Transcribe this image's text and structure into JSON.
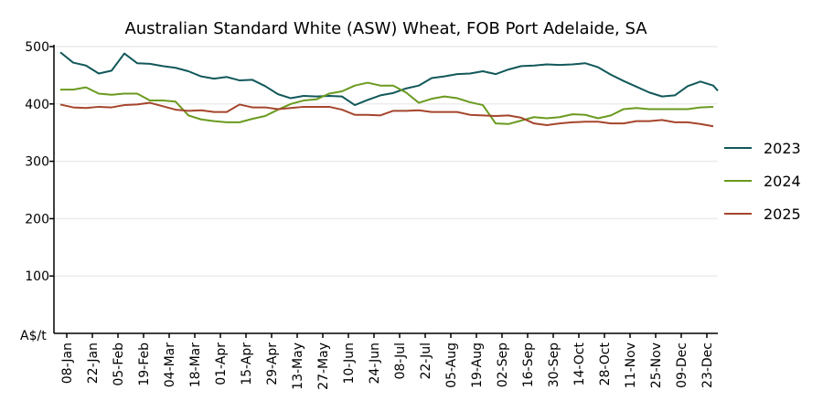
{
  "chart_data": {
    "type": "line",
    "title": "Australian Standard White (ASW) Wheat, FOB Port Adelaide, SA",
    "ylabel": "A$/t",
    "xlabel": "",
    "ylim": [
      0,
      500
    ],
    "yticks": [
      100,
      200,
      300,
      400,
      500
    ],
    "xtick_labels": [
      "08-Jan",
      "22-Jan",
      "05-Feb",
      "19-Feb",
      "04-Mar",
      "18-Mar",
      "01-Apr",
      "15-Apr",
      "29-Apr",
      "13-May",
      "27-May",
      "10-Jun",
      "24-Jun",
      "08-Jul",
      "22-Jul",
      "05-Aug",
      "19-Aug",
      "02-Sep",
      "16-Sep",
      "30-Sep",
      "14-Oct",
      "28-Oct",
      "11-Nov",
      "25-Nov",
      "09-Dec",
      "23-Dec"
    ],
    "x_interval": "weekly",
    "grid": "horizontal",
    "legend_position": "right",
    "series": [
      {
        "name": "2023",
        "color": "#12585a",
        "values": [
          490,
          472,
          467,
          453,
          458,
          488,
          471,
          470,
          466,
          463,
          457,
          448,
          444,
          447,
          441,
          442,
          431,
          417,
          410,
          414,
          413,
          414,
          413,
          398,
          407,
          415,
          419,
          427,
          432,
          445,
          448,
          452,
          453,
          457,
          452,
          460,
          466,
          467,
          469,
          468,
          469,
          471,
          464,
          451,
          440,
          430,
          420,
          413,
          415,
          431,
          439,
          432,
          423
        ]
      },
      {
        "name": "2024",
        "color": "#6a9a1f",
        "values": [
          425,
          425,
          429,
          418,
          416,
          418,
          418,
          406,
          406,
          404,
          380,
          373,
          370,
          368,
          368,
          374,
          379,
          390,
          400,
          406,
          408,
          418,
          422,
          432,
          437,
          432,
          432,
          420,
          402,
          409,
          413,
          410,
          403,
          398,
          366,
          365,
          371,
          377,
          375,
          377,
          382,
          381,
          375,
          380,
          391,
          393,
          391,
          391,
          391,
          391,
          394,
          395
        ]
      },
      {
        "name": "2025",
        "color": "#a5452c",
        "values": [
          399,
          394,
          393,
          395,
          394,
          398,
          399,
          402,
          396,
          390,
          388,
          389,
          386,
          386,
          399,
          394,
          394,
          391,
          393,
          395,
          395,
          395,
          390,
          381,
          381,
          380,
          388,
          388,
          389,
          386,
          386,
          386,
          381,
          380,
          379,
          380,
          376,
          366,
          363,
          366,
          368,
          369,
          369,
          366,
          366,
          370,
          370,
          372,
          368,
          368,
          365,
          361
        ]
      }
    ]
  }
}
